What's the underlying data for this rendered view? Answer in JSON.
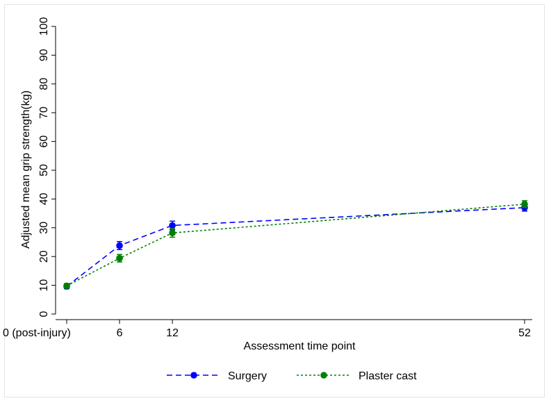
{
  "chart_data": {
    "type": "line",
    "title": "",
    "xlabel": "Assessment time point",
    "ylabel": "Adjusted mean grip strength(kg)",
    "x": [
      0,
      6,
      12,
      52
    ],
    "x_tick_labels": [
      "0 (post-injury)",
      "6",
      "12",
      "52"
    ],
    "ylim": [
      0,
      100
    ],
    "y_ticks": [
      0,
      10,
      20,
      30,
      40,
      50,
      60,
      70,
      80,
      90,
      100
    ],
    "grid": false,
    "legend_position": "bottom",
    "series": [
      {
        "name": "Surgery",
        "color": "#0000ff",
        "line_style": "dashed",
        "marker": "filled-circle",
        "values": [
          9.6,
          23.8,
          30.8,
          37.0
        ],
        "err": [
          0.8,
          1.4,
          1.5,
          1.2
        ]
      },
      {
        "name": "Plaster cast",
        "color": "#008000",
        "line_style": "dotted",
        "marker": "filled-circle",
        "values": [
          9.8,
          19.4,
          28.2,
          38.2
        ],
        "err": [
          0.8,
          1.3,
          1.5,
          1.2
        ]
      }
    ]
  }
}
